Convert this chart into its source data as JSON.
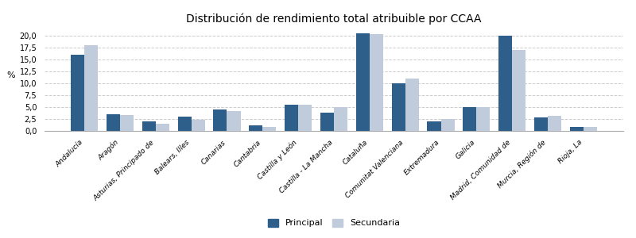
{
  "title": "Distribución de rendimiento total atribuible por CCAA",
  "categories": [
    "Andalucía",
    "Aragón",
    "Asturias, Principado de",
    "Balears, Illes",
    "Canarias",
    "Cantabria",
    "Castilla y León",
    "Castilla - La Mancha",
    "Cataluña",
    "Comunitat Valenciana",
    "Extremadura",
    "Galicia",
    "Madrid, Comunidad de",
    "Murcia, Región de",
    "Rioja, La"
  ],
  "principal": [
    16.0,
    3.5,
    2.0,
    3.0,
    4.5,
    1.2,
    5.5,
    3.8,
    20.5,
    10.0,
    2.0,
    5.0,
    20.0,
    2.8,
    0.8
  ],
  "secundaria": [
    18.0,
    3.4,
    1.5,
    2.4,
    4.2,
    0.9,
    5.5,
    5.0,
    20.3,
    11.0,
    2.5,
    5.0,
    17.0,
    3.2,
    0.8
  ],
  "color_principal": "#2E5F8A",
  "color_secundaria": "#C0CBDB",
  "ylabel": "%",
  "ylim": [
    0,
    21.5
  ],
  "yticks": [
    0.0,
    2.5,
    5.0,
    7.5,
    10.0,
    12.5,
    15.0,
    17.5,
    20.0
  ],
  "legend_labels": [
    "Principal",
    "Secundaria"
  ],
  "background_color": "#FFFFFF",
  "grid_color": "#CCCCCC",
  "title_fontsize": 10,
  "tick_fontsize": 6.5,
  "ylabel_fontsize": 8
}
